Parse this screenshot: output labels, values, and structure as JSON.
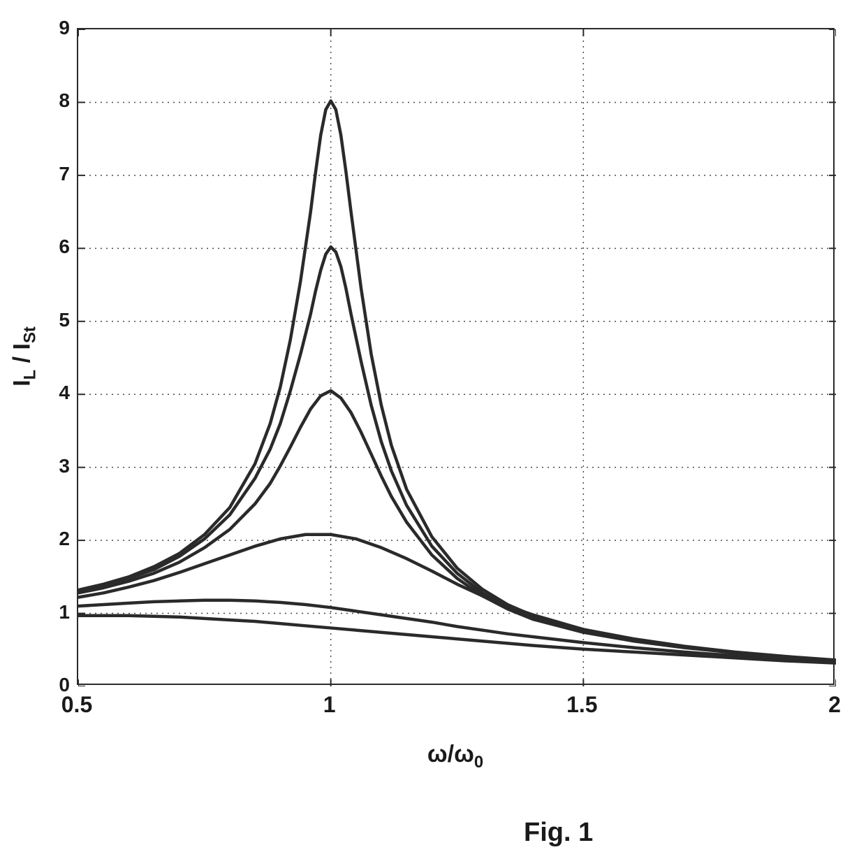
{
  "chart": {
    "type": "line",
    "xlim": [
      0.5,
      2.0
    ],
    "ylim": [
      0,
      9
    ],
    "xtick_positions": [
      0.5,
      1.0,
      1.5,
      2.0
    ],
    "xtick_labels": [
      "0.5",
      "1",
      "1.5",
      "2"
    ],
    "ytick_positions": [
      0,
      1,
      2,
      3,
      4,
      5,
      6,
      7,
      8,
      9
    ],
    "ytick_labels": [
      "0",
      "1",
      "2",
      "3",
      "4",
      "5",
      "6",
      "7",
      "8",
      "9"
    ],
    "ylabel_html": "I<sub class='sub'>L</sub> / I<sub class='sub'>St</sub>",
    "xlabel_html": "&omega;/&omega;<sub class='sub'>0</sub>",
    "caption": "Fig. 1",
    "background_color": "#ffffff",
    "axis_color": "#2a2a2a",
    "grid_color": "#4a4a4a",
    "grid_dash": "2,6",
    "tick_fontsize": 28,
    "label_fontsize": 34,
    "caption_fontsize": 38,
    "line_color": "#2a2a2a",
    "line_width": 4.5,
    "series": [
      {
        "name": "Q8",
        "data": [
          [
            0.5,
            1.32
          ],
          [
            0.55,
            1.4
          ],
          [
            0.6,
            1.5
          ],
          [
            0.65,
            1.64
          ],
          [
            0.7,
            1.82
          ],
          [
            0.75,
            2.08
          ],
          [
            0.8,
            2.45
          ],
          [
            0.85,
            3.05
          ],
          [
            0.88,
            3.6
          ],
          [
            0.9,
            4.1
          ],
          [
            0.92,
            4.75
          ],
          [
            0.94,
            5.55
          ],
          [
            0.96,
            6.5
          ],
          [
            0.97,
            7.05
          ],
          [
            0.98,
            7.55
          ],
          [
            0.99,
            7.9
          ],
          [
            1.0,
            8.02
          ],
          [
            1.01,
            7.9
          ],
          [
            1.02,
            7.55
          ],
          [
            1.03,
            7.05
          ],
          [
            1.04,
            6.5
          ],
          [
            1.06,
            5.45
          ],
          [
            1.08,
            4.55
          ],
          [
            1.1,
            3.85
          ],
          [
            1.12,
            3.3
          ],
          [
            1.15,
            2.7
          ],
          [
            1.2,
            2.05
          ],
          [
            1.25,
            1.62
          ],
          [
            1.3,
            1.33
          ],
          [
            1.35,
            1.12
          ],
          [
            1.4,
            0.97
          ],
          [
            1.5,
            0.78
          ],
          [
            1.6,
            0.65
          ],
          [
            1.7,
            0.55
          ],
          [
            1.8,
            0.47
          ],
          [
            1.9,
            0.41
          ],
          [
            2.0,
            0.36
          ]
        ]
      },
      {
        "name": "Q6",
        "data": [
          [
            0.5,
            1.3
          ],
          [
            0.55,
            1.38
          ],
          [
            0.6,
            1.48
          ],
          [
            0.65,
            1.6
          ],
          [
            0.7,
            1.78
          ],
          [
            0.75,
            2.02
          ],
          [
            0.8,
            2.35
          ],
          [
            0.85,
            2.85
          ],
          [
            0.88,
            3.25
          ],
          [
            0.9,
            3.6
          ],
          [
            0.92,
            4.05
          ],
          [
            0.94,
            4.55
          ],
          [
            0.96,
            5.1
          ],
          [
            0.97,
            5.42
          ],
          [
            0.98,
            5.7
          ],
          [
            0.99,
            5.92
          ],
          [
            1.0,
            6.02
          ],
          [
            1.01,
            5.95
          ],
          [
            1.02,
            5.75
          ],
          [
            1.03,
            5.45
          ],
          [
            1.04,
            5.1
          ],
          [
            1.06,
            4.45
          ],
          [
            1.08,
            3.85
          ],
          [
            1.1,
            3.35
          ],
          [
            1.12,
            2.95
          ],
          [
            1.15,
            2.48
          ],
          [
            1.2,
            1.92
          ],
          [
            1.25,
            1.55
          ],
          [
            1.3,
            1.28
          ],
          [
            1.35,
            1.08
          ],
          [
            1.4,
            0.95
          ],
          [
            1.5,
            0.76
          ],
          [
            1.6,
            0.64
          ],
          [
            1.7,
            0.54
          ],
          [
            1.8,
            0.46
          ],
          [
            1.9,
            0.4
          ],
          [
            2.0,
            0.35
          ]
        ]
      },
      {
        "name": "Q4",
        "data": [
          [
            0.5,
            1.28
          ],
          [
            0.55,
            1.35
          ],
          [
            0.6,
            1.44
          ],
          [
            0.65,
            1.55
          ],
          [
            0.7,
            1.7
          ],
          [
            0.75,
            1.9
          ],
          [
            0.8,
            2.15
          ],
          [
            0.85,
            2.5
          ],
          [
            0.88,
            2.78
          ],
          [
            0.9,
            3.02
          ],
          [
            0.92,
            3.28
          ],
          [
            0.94,
            3.55
          ],
          [
            0.96,
            3.8
          ],
          [
            0.98,
            3.98
          ],
          [
            1.0,
            4.05
          ],
          [
            1.02,
            3.95
          ],
          [
            1.04,
            3.75
          ],
          [
            1.06,
            3.48
          ],
          [
            1.08,
            3.18
          ],
          [
            1.1,
            2.88
          ],
          [
            1.12,
            2.6
          ],
          [
            1.15,
            2.25
          ],
          [
            1.2,
            1.8
          ],
          [
            1.25,
            1.48
          ],
          [
            1.3,
            1.24
          ],
          [
            1.35,
            1.06
          ],
          [
            1.4,
            0.92
          ],
          [
            1.5,
            0.74
          ],
          [
            1.6,
            0.62
          ],
          [
            1.7,
            0.53
          ],
          [
            1.8,
            0.46
          ],
          [
            1.9,
            0.4
          ],
          [
            2.0,
            0.35
          ]
        ]
      },
      {
        "name": "Q2",
        "data": [
          [
            0.5,
            1.22
          ],
          [
            0.55,
            1.28
          ],
          [
            0.6,
            1.36
          ],
          [
            0.65,
            1.45
          ],
          [
            0.7,
            1.56
          ],
          [
            0.75,
            1.68
          ],
          [
            0.8,
            1.8
          ],
          [
            0.85,
            1.92
          ],
          [
            0.9,
            2.02
          ],
          [
            0.95,
            2.08
          ],
          [
            1.0,
            2.08
          ],
          [
            1.05,
            2.02
          ],
          [
            1.1,
            1.9
          ],
          [
            1.15,
            1.75
          ],
          [
            1.2,
            1.58
          ],
          [
            1.25,
            1.4
          ],
          [
            1.3,
            1.24
          ],
          [
            1.35,
            1.1
          ],
          [
            1.4,
            0.98
          ],
          [
            1.45,
            0.88
          ],
          [
            1.5,
            0.78
          ],
          [
            1.6,
            0.64
          ],
          [
            1.7,
            0.54
          ],
          [
            1.8,
            0.46
          ],
          [
            1.9,
            0.4
          ],
          [
            2.0,
            0.35
          ]
        ]
      },
      {
        "name": "Q1",
        "data": [
          [
            0.5,
            1.1
          ],
          [
            0.55,
            1.12
          ],
          [
            0.6,
            1.14
          ],
          [
            0.65,
            1.16
          ],
          [
            0.7,
            1.17
          ],
          [
            0.75,
            1.18
          ],
          [
            0.8,
            1.18
          ],
          [
            0.85,
            1.17
          ],
          [
            0.9,
            1.15
          ],
          [
            0.95,
            1.12
          ],
          [
            1.0,
            1.08
          ],
          [
            1.05,
            1.03
          ],
          [
            1.1,
            0.98
          ],
          [
            1.15,
            0.93
          ],
          [
            1.2,
            0.88
          ],
          [
            1.25,
            0.82
          ],
          [
            1.3,
            0.77
          ],
          [
            1.35,
            0.72
          ],
          [
            1.4,
            0.68
          ],
          [
            1.5,
            0.6
          ],
          [
            1.6,
            0.53
          ],
          [
            1.7,
            0.47
          ],
          [
            1.8,
            0.42
          ],
          [
            1.9,
            0.37
          ],
          [
            2.0,
            0.33
          ]
        ]
      },
      {
        "name": "Q05",
        "data": [
          [
            0.5,
            0.97
          ],
          [
            0.55,
            0.97
          ],
          [
            0.6,
            0.97
          ],
          [
            0.65,
            0.96
          ],
          [
            0.7,
            0.95
          ],
          [
            0.75,
            0.93
          ],
          [
            0.8,
            0.91
          ],
          [
            0.85,
            0.89
          ],
          [
            0.9,
            0.86
          ],
          [
            0.95,
            0.83
          ],
          [
            1.0,
            0.8
          ],
          [
            1.05,
            0.77
          ],
          [
            1.1,
            0.74
          ],
          [
            1.15,
            0.71
          ],
          [
            1.2,
            0.68
          ],
          [
            1.25,
            0.65
          ],
          [
            1.3,
            0.62
          ],
          [
            1.35,
            0.59
          ],
          [
            1.4,
            0.56
          ],
          [
            1.5,
            0.51
          ],
          [
            1.6,
            0.47
          ],
          [
            1.7,
            0.43
          ],
          [
            1.8,
            0.39
          ],
          [
            1.9,
            0.35
          ],
          [
            2.0,
            0.32
          ]
        ]
      }
    ]
  }
}
